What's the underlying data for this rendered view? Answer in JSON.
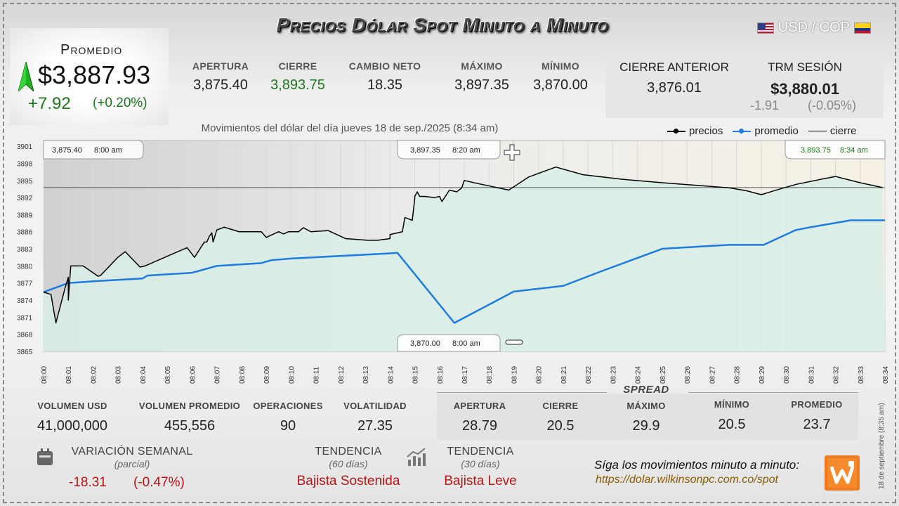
{
  "header": {
    "title": "Precios Dólar Spot Minuto a Minuto",
    "pair": "USD / COP"
  },
  "promedio": {
    "label": "Promedio",
    "value": "$3,887.93",
    "change": "+7.92",
    "change_pct": "(+0.20%)"
  },
  "top_stats": [
    {
      "label": "APERTURA",
      "value": "3,875.40"
    },
    {
      "label": "CIERRE",
      "value": "3,893.75"
    },
    {
      "label": "CAMBIO NETO",
      "value": "18.35"
    },
    {
      "label": "MÁXIMO",
      "value": "3,897.35"
    },
    {
      "label": "MÍNIMO",
      "value": "3,870.00"
    }
  ],
  "previous": {
    "cierre_anterior_label": "CIERRE ANTERIOR",
    "cierre_anterior_value": "3,876.01",
    "trm_label": "TRM SESIÓN",
    "trm_value": "$3,880.01",
    "trm_change": "-1.91",
    "trm_change_pct": "(-0.05%)"
  },
  "chart_subtitle": "Movimientos del dólar del día jueves 18 de sep./2025 (8:34 am)",
  "legend": {
    "precios": "precios",
    "promedio": "promedio",
    "cierre": "cierre"
  },
  "annotations": {
    "open": {
      "price": "3,875.40",
      "time": "8:00 am"
    },
    "max": {
      "price": "3,897.35",
      "time": "8:20 am"
    },
    "close": {
      "price": "3,893.75",
      "time": "8:34 am"
    },
    "min": {
      "price": "3,870.00",
      "time": "8:00 am"
    }
  },
  "colors": {
    "precios": "#000000",
    "promedio": "#1e7be0",
    "area": "#d8efe6",
    "positive": "#1a7a1a",
    "negative": "#b81414"
  },
  "chart_data": {
    "type": "line",
    "y_ticks": [
      3865,
      3868,
      3871,
      3874,
      3877,
      3880,
      3883,
      3886,
      3889,
      3892,
      3895,
      3898,
      3901
    ],
    "ylim": [
      3865,
      3902
    ],
    "x_ticks": [
      "08:00",
      "08:01",
      "08:02",
      "08:03",
      "08:04",
      "08:05",
      "08:06",
      "08:07",
      "08:08",
      "08:09",
      "08:10",
      "08:11",
      "08:12",
      "08:13",
      "08:14",
      "08:15",
      "08:16",
      "08:17",
      "08:18",
      "08:19",
      "08:20",
      "08:21",
      "08:22",
      "08:23",
      "08:24",
      "08:25",
      "08:26",
      "08:27",
      "08:28",
      "08:29",
      "08:30",
      "08:31",
      "08:32",
      "08:33",
      "08:34"
    ],
    "xlim": [
      0,
      34
    ],
    "series": [
      {
        "name": "precios",
        "x": [
          0,
          0.3,
          0.5,
          0.85,
          1.0,
          1.0,
          1.1,
          1.6,
          2.2,
          2.3,
          3.0,
          3.3,
          3.9,
          4.1,
          5.8,
          6.1,
          6.5,
          6.6,
          6.7,
          6.8,
          6.85,
          7.0,
          7.3,
          7.9,
          8.6,
          8.8,
          9.0,
          9.5,
          9.7,
          9.9,
          10.3,
          10.5,
          10.8,
          11.5,
          12.2,
          13.1,
          13.5,
          14.0,
          14.0,
          14.5,
          14.5,
          14.6,
          14.9,
          15.0,
          15.0,
          15.1,
          15.2,
          15.4,
          15.8,
          16.0,
          16.1,
          16.4,
          16.7,
          16.9,
          17.0,
          17.5,
          18.8,
          19.6,
          20.7,
          21.8,
          23.4,
          25.0,
          27.7,
          28.4,
          29.0,
          29.6,
          30.4,
          31.3,
          32.0,
          33.0,
          33.9
        ],
        "y": [
          3875.4,
          3875.0,
          3870.0,
          3875.8,
          3878.0,
          3874.0,
          3880.0,
          3880.0,
          3878.2,
          3878.3,
          3881.5,
          3882.5,
          3879.8,
          3880.0,
          3883.2,
          3881.5,
          3884.2,
          3884.2,
          3885.2,
          3885.8,
          3884.2,
          3886.3,
          3886.8,
          3886.0,
          3886.0,
          3886.0,
          3885.0,
          3886.0,
          3885.6,
          3886.0,
          3886.0,
          3886.7,
          3886.0,
          3886.2,
          3884.8,
          3884.5,
          3884.5,
          3884.8,
          3885.5,
          3886.0,
          3886.0,
          3888.5,
          3888.0,
          3891.8,
          3892.2,
          3893.0,
          3892.2,
          3892.2,
          3892.0,
          3892.2,
          3891.3,
          3893.3,
          3893.0,
          3893.7,
          3895.0,
          3894.5,
          3893.3,
          3895.6,
          3897.35,
          3896.0,
          3895.2,
          3894.6,
          3893.7,
          3893.2,
          3892.5,
          3893.3,
          3894.3,
          3895.1,
          3895.7,
          3894.6,
          3893.75
        ]
      },
      {
        "name": "promedio",
        "x": [
          0,
          0.5,
          1.0,
          2.0,
          4.0,
          4.2,
          6.0,
          7.0,
          8.8,
          9.2,
          10.0,
          14.0,
          14.3,
          16.6,
          19.0,
          21.0,
          22.5,
          25.0,
          27.7,
          29.1,
          30.4,
          31.0,
          32.6,
          34.0
        ],
        "y": [
          3875.4,
          3876.2,
          3877.0,
          3877.3,
          3877.8,
          3878.3,
          3878.8,
          3880.0,
          3880.5,
          3881.0,
          3881.3,
          3882.2,
          3882.3,
          3870.0,
          3875.5,
          3876.5,
          3879.0,
          3883.0,
          3883.7,
          3883.7,
          3886.3,
          3886.8,
          3888.0,
          3888.0
        ]
      },
      {
        "name": "cierre",
        "x": [
          0,
          34
        ],
        "y": [
          3893.75,
          3893.75
        ]
      }
    ]
  },
  "bottom_stats": [
    {
      "label": "VOLUMEN USD",
      "value": "41,000,000"
    },
    {
      "label": "VOLUMEN PROMEDIO",
      "value": "455,556"
    },
    {
      "label": "OPERACIONES",
      "value": "90"
    },
    {
      "label": "VOLATILIDAD",
      "value": "27.35"
    }
  ],
  "spread": {
    "title": "SPREAD",
    "items": [
      {
        "label": "APERTURA",
        "value": "28.79"
      },
      {
        "label": "CIERRE",
        "value": "20.5"
      },
      {
        "label": "MÁXIMO",
        "value": "29.9"
      },
      {
        "label": "MÍNIMO",
        "value": "20.5"
      },
      {
        "label": "PROMEDIO",
        "value": "23.7"
      }
    ]
  },
  "weekly": {
    "label": "VARIACIÓN SEMANAL",
    "sub": "(parcial)",
    "value": "-18.31",
    "pct": "(-0.47%)"
  },
  "trend60": {
    "label": "TENDENCIA",
    "sub": "(60 días)",
    "value": "Bajista Sostenida"
  },
  "trend30": {
    "label": "TENDENCIA",
    "sub": "(30 días)",
    "value": "Bajista Leve"
  },
  "follow": {
    "text": "Síga los movimientos minuto a minuto:",
    "url": "https://dolar.wilkinsonpc.com.co/spot"
  },
  "vertical_date": "18 de septiembre (8:35 am)",
  "icons": {
    "trend_up": "green-up-arrow-icon",
    "calendar": "calendar-icon",
    "bars": "bar-chart-icon",
    "crosshair": "crosshair-icon",
    "logo": "wilkinson-logo-icon"
  }
}
